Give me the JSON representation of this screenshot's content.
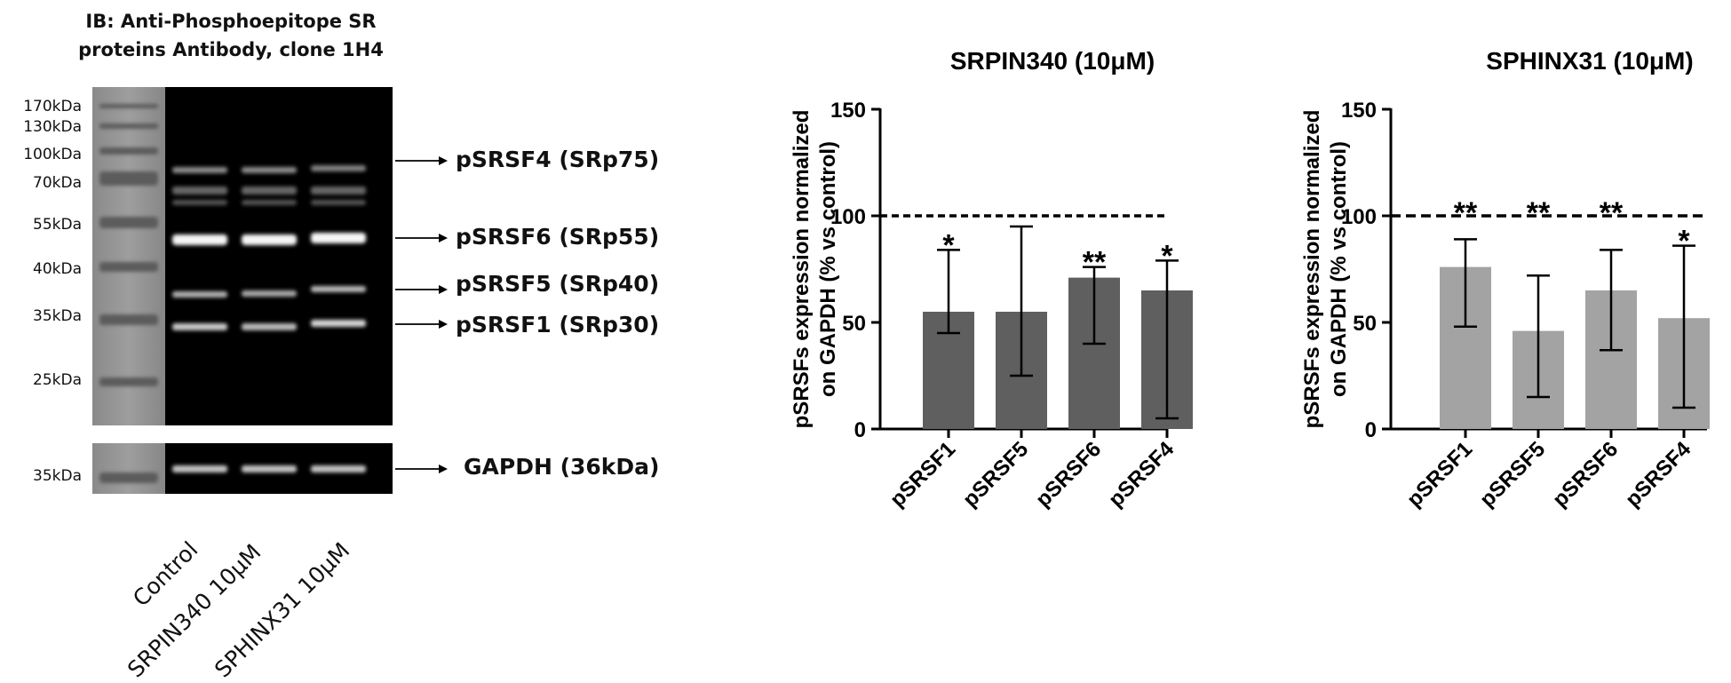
{
  "blot": {
    "title_line1": "IB: Anti-Phosphoepitope SR",
    "title_line2": "proteins Antibody, clone 1H4",
    "markers": [
      "170kDa",
      "130kDa",
      "100kDa",
      "70kDa",
      "55kDa",
      "40kDa",
      "35kDa",
      "25kDa"
    ],
    "gapdh_marker": "35kDa",
    "bands": [
      "pSRSF4 (SRp75)",
      "pSRSF6 (SRp55)",
      "pSRSF5 (SRp40)",
      "pSRSF1 (SRp30)"
    ],
    "gapdh_label": "GAPDH (36kDa)",
    "lanes": [
      "Control",
      "SRPIN340 10μM",
      "SPHINX31 10μM"
    ]
  },
  "chart_data": [
    {
      "type": "bar",
      "title": "SRPIN340 (10μM)",
      "ylabel_line1": "pSRSFs expression normalized",
      "ylabel_line2": "on GAPDH (% vs control)",
      "categories": [
        "pSRSF1",
        "pSRSF5",
        "pSRSF6",
        "pSRSF4"
      ],
      "values": [
        55,
        55,
        71,
        65
      ],
      "error_low": [
        45,
        25,
        40,
        5
      ],
      "error_high": [
        84,
        95,
        76,
        79
      ],
      "significance": [
        "*",
        "",
        "**",
        "*"
      ],
      "reference_line": 100,
      "ylim": [
        0,
        150
      ],
      "yticks": [
        "0",
        "50",
        "100",
        "150"
      ],
      "bar_color": "#5f5f5f",
      "grid": false
    },
    {
      "type": "bar",
      "title": "SPHINX31 (10μM)",
      "ylabel_line1": "pSRSFs expression normalized",
      "ylabel_line2": "on GAPDH (% vs control)",
      "categories": [
        "pSRSF1",
        "pSRSF5",
        "pSRSF6",
        "pSRSF4"
      ],
      "values": [
        76,
        46,
        65,
        52
      ],
      "error_low": [
        48,
        15,
        37,
        10
      ],
      "error_high": [
        89,
        72,
        84,
        86
      ],
      "significance": [
        "**",
        "**",
        "**",
        "*"
      ],
      "reference_line": 100,
      "ylim": [
        0,
        150
      ],
      "yticks": [
        "0",
        "50",
        "100",
        "150"
      ],
      "bar_color": "#a3a3a3",
      "grid": false
    }
  ]
}
